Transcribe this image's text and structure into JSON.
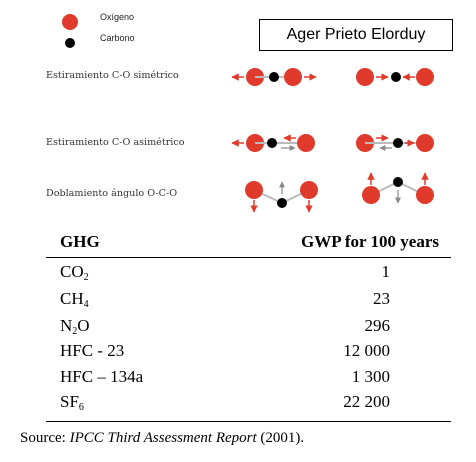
{
  "legend": {
    "oxygen": "Oxígeno",
    "carbon": "Carbono",
    "oxygen_color": "#e03a2c",
    "carbon_color": "#000000"
  },
  "author_box": "Ager Prieto Elorduy",
  "modes": [
    {
      "label": "Estiramiento C-O simétrico"
    },
    {
      "label": "Estiramiento C-O asimétrico"
    },
    {
      "label": "Doblamiento ángulo O-C-O"
    }
  ],
  "table": {
    "headers": [
      "GHG",
      "GWP for 100 years"
    ],
    "rows": [
      {
        "gas": "CO",
        "sub": "2",
        "value": "1"
      },
      {
        "gas": "CH",
        "sub": "4",
        "value": "23"
      },
      {
        "gas": "N",
        "sub": "2",
        "gas_suffix": "O",
        "value": "296"
      },
      {
        "gas": "HFC - 23",
        "value": "12 000"
      },
      {
        "gas": "HFC – 134a",
        "value": "1 300"
      },
      {
        "gas": "SF",
        "sub": "6",
        "value": "22 200"
      }
    ]
  },
  "source": {
    "prefix": "Source: ",
    "title": "IPCC Third Assessment Report",
    "suffix": " (2001)."
  }
}
